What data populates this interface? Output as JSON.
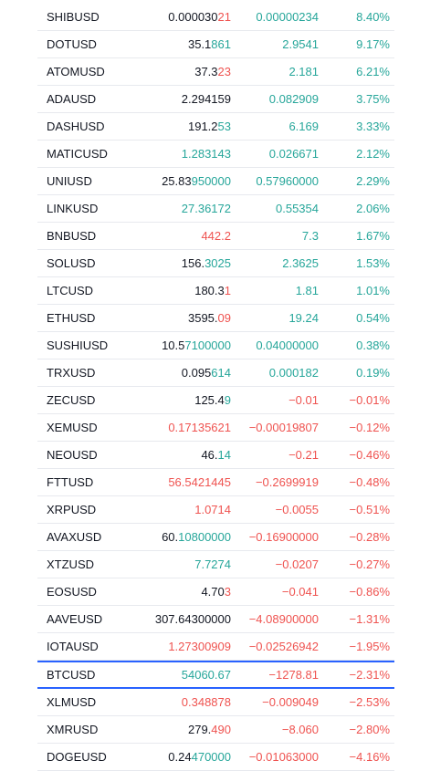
{
  "colors": {
    "up": "#26a69a",
    "down": "#ef5350",
    "text": "#131722",
    "highlight_border": "#2962ff"
  },
  "rows": [
    {
      "symbol": "SHIBUSD",
      "last_main": "0.000030",
      "last_tail": "21",
      "last_dir": "down",
      "change": "0.00000234",
      "percent": "8.40%",
      "dir": "up"
    },
    {
      "symbol": "DOTUSD",
      "last_main": "35.1",
      "last_tail": "861",
      "last_dir": "up",
      "change": "2.9541",
      "percent": "9.17%",
      "dir": "up"
    },
    {
      "symbol": "ATOMUSD",
      "last_main": "37.3",
      "last_tail": "23",
      "last_dir": "down",
      "change": "2.181",
      "percent": "6.21%",
      "dir": "up"
    },
    {
      "symbol": "ADAUSD",
      "last_main": "2.294159",
      "last_tail": "",
      "last_dir": "neutral",
      "change": "0.082909",
      "percent": "3.75%",
      "dir": "up"
    },
    {
      "symbol": "DASHUSD",
      "last_main": "191.2",
      "last_tail": "53",
      "last_dir": "up",
      "change": "6.169",
      "percent": "3.33%",
      "dir": "up"
    },
    {
      "symbol": "MATICUSD",
      "last_main": "",
      "last_tail": "1.283143",
      "last_dir": "up",
      "change": "0.026671",
      "percent": "2.12%",
      "dir": "up"
    },
    {
      "symbol": "UNIUSD",
      "last_main": "25.83",
      "last_tail": "950000",
      "last_dir": "up",
      "change": "0.57960000",
      "percent": "2.29%",
      "dir": "up"
    },
    {
      "symbol": "LINKUSD",
      "last_main": "",
      "last_tail": "27.36172",
      "last_dir": "up",
      "change": "0.55354",
      "percent": "2.06%",
      "dir": "up"
    },
    {
      "symbol": "BNBUSD",
      "last_main": "",
      "last_tail": "442.2",
      "last_dir": "down",
      "change": "7.3",
      "percent": "1.67%",
      "dir": "up"
    },
    {
      "symbol": "SOLUSD",
      "last_main": "156.",
      "last_tail": "3025",
      "last_dir": "up",
      "change": "2.3625",
      "percent": "1.53%",
      "dir": "up"
    },
    {
      "symbol": "LTCUSD",
      "last_main": "180.3",
      "last_tail": "1",
      "last_dir": "down",
      "change": "1.81",
      "percent": "1.01%",
      "dir": "up"
    },
    {
      "symbol": "ETHUSD",
      "last_main": "3595.",
      "last_tail": "09",
      "last_dir": "down",
      "change": "19.24",
      "percent": "0.54%",
      "dir": "up"
    },
    {
      "symbol": "SUSHIUSD",
      "last_main": "10.5",
      "last_tail": "7100000",
      "last_dir": "up",
      "change": "0.04000000",
      "percent": "0.38%",
      "dir": "up"
    },
    {
      "symbol": "TRXUSD",
      "last_main": "0.095",
      "last_tail": "614",
      "last_dir": "up",
      "change": "0.000182",
      "percent": "0.19%",
      "dir": "up"
    },
    {
      "symbol": "ZECUSD",
      "last_main": "125.4",
      "last_tail": "9",
      "last_dir": "up",
      "change": "−0.01",
      "percent": "−0.01%",
      "dir": "down"
    },
    {
      "symbol": "XEMUSD",
      "last_main": "",
      "last_tail": "0.17135621",
      "last_dir": "down",
      "change": "−0.00019807",
      "percent": "−0.12%",
      "dir": "down"
    },
    {
      "symbol": "NEOUSD",
      "last_main": "46.",
      "last_tail": "14",
      "last_dir": "up",
      "change": "−0.21",
      "percent": "−0.46%",
      "dir": "down"
    },
    {
      "symbol": "FTTUSD",
      "last_main": "",
      "last_tail": "56.5421445",
      "last_dir": "down",
      "change": "−0.2699919",
      "percent": "−0.48%",
      "dir": "down"
    },
    {
      "symbol": "XRPUSD",
      "last_main": "",
      "last_tail": "1.0714",
      "last_dir": "down",
      "change": "−0.0055",
      "percent": "−0.51%",
      "dir": "down"
    },
    {
      "symbol": "AVAXUSD",
      "last_main": "60.",
      "last_tail": "10800000",
      "last_dir": "up",
      "change": "−0.16900000",
      "percent": "−0.28%",
      "dir": "down"
    },
    {
      "symbol": "XTZUSD",
      "last_main": "",
      "last_tail": "7.7274",
      "last_dir": "up",
      "change": "−0.0207",
      "percent": "−0.27%",
      "dir": "down"
    },
    {
      "symbol": "EOSUSD",
      "last_main": "4.70",
      "last_tail": "3",
      "last_dir": "down",
      "change": "−0.041",
      "percent": "−0.86%",
      "dir": "down"
    },
    {
      "symbol": "AAVEUSD",
      "last_main": "307.64300000",
      "last_tail": "",
      "last_dir": "neutral",
      "change": "−4.08900000",
      "percent": "−1.31%",
      "dir": "down"
    },
    {
      "symbol": "IOTAUSD",
      "last_main": "",
      "last_tail": "1.27300909",
      "last_dir": "down",
      "change": "−0.02526942",
      "percent": "−1.95%",
      "dir": "down"
    },
    {
      "symbol": "BTCUSD",
      "last_main": "",
      "last_tail": "54060.67",
      "last_dir": "up",
      "change": "−1278.81",
      "percent": "−2.31%",
      "dir": "down",
      "highlight": true
    },
    {
      "symbol": "XLMUSD",
      "last_main": "",
      "last_tail": "0.348878",
      "last_dir": "down",
      "change": "−0.009049",
      "percent": "−2.53%",
      "dir": "down"
    },
    {
      "symbol": "XMRUSD",
      "last_main": "279.",
      "last_tail": "490",
      "last_dir": "down",
      "change": "−8.060",
      "percent": "−2.80%",
      "dir": "down"
    },
    {
      "symbol": "DOGEUSD",
      "last_main": "0.24",
      "last_tail": "470000",
      "last_dir": "up",
      "change": "−0.01063000",
      "percent": "−4.16%",
      "dir": "down"
    }
  ]
}
